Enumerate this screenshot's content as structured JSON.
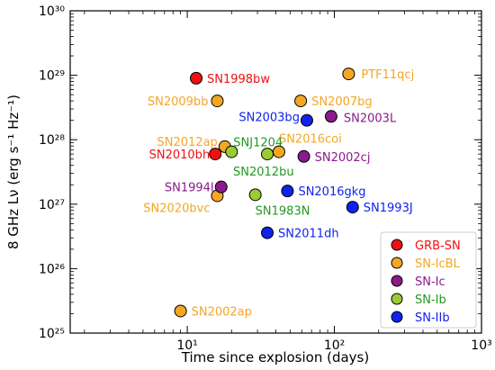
{
  "chart_data": {
    "type": "scatter",
    "title": "",
    "xlabel": "Time since explosion (days)",
    "ylabel": "8 GHz Lν (erg s⁻¹ Hz⁻¹)",
    "x_scale": "log",
    "y_scale": "log",
    "xlim": [
      1.6,
      1000
    ],
    "ylim": [
      1e+25,
      1e+30
    ],
    "x_ticks": [
      {
        "value": 10,
        "label": "10¹"
      },
      {
        "value": 100,
        "label": "10²"
      },
      {
        "value": 1000,
        "label": "10³"
      }
    ],
    "y_ticks": [
      {
        "value": 1e+25,
        "label": "10²⁵"
      },
      {
        "value": 1e+26,
        "label": "10²⁶"
      },
      {
        "value": 1e+27,
        "label": "10²⁷"
      },
      {
        "value": 1e+28,
        "label": "10²⁸"
      },
      {
        "value": 1e+29,
        "label": "10²⁹"
      },
      {
        "value": 1e+30,
        "label": "10³⁰"
      }
    ],
    "grid": false,
    "legend_position": "bottom-right",
    "series": [
      {
        "name": "GRB-SN",
        "color": "#ee1111",
        "label_color": "#ee1111",
        "points": [
          {
            "label": "SN1998bw",
            "x": 11.5,
            "y": 9e+28
          },
          {
            "label": "SN2010bh",
            "x": 15.5,
            "y": 6e+27
          }
        ]
      },
      {
        "name": "SN-IcBL",
        "color": "#f5a623",
        "label_color": "#f5a623",
        "points": [
          {
            "label": "PTF11qcj",
            "x": 125,
            "y": 1.05e+29
          },
          {
            "label": "SN2009bb",
            "x": 16,
            "y": 4e+28
          },
          {
            "label": "SN2007bg",
            "x": 59,
            "y": 4e+28
          },
          {
            "label": "SN2012ap",
            "x": 18,
            "y": 7.8e+27
          },
          {
            "label": "SN2016coi",
            "x": 42,
            "y": 6.5e+27
          },
          {
            "label": "SN2020bvc",
            "x": 16,
            "y": 1.35e+27
          },
          {
            "label": "SN2002ap",
            "x": 9,
            "y": 2.2e+25
          }
        ]
      },
      {
        "name": "SN-Ic",
        "color": "#8b1a8b",
        "label_color": "#8b1a8b",
        "points": [
          {
            "label": "SN2003L",
            "x": 95,
            "y": 2.3e+28
          },
          {
            "label": "SN2002cj",
            "x": 62,
            "y": 5.5e+27
          },
          {
            "label": "SN1994I",
            "x": 17,
            "y": 1.85e+27
          }
        ]
      },
      {
        "name": "SN-Ib",
        "color": "#99cc33",
        "label_color": "#229922",
        "points": [
          {
            "label": "SNJ1204",
            "x": 20,
            "y": 6.5e+27
          },
          {
            "label": "SN2012bu",
            "x": 35,
            "y": 6e+27
          },
          {
            "label": "SN1983N",
            "x": 29,
            "y": 1.4e+27
          }
        ]
      },
      {
        "name": "SN-IIb",
        "color": "#1122ee",
        "label_color": "#1122ee",
        "points": [
          {
            "label": "SN2003bg",
            "x": 65,
            "y": 2e+28
          },
          {
            "label": "SN2016gkg",
            "x": 48,
            "y": 1.6e+27
          },
          {
            "label": "SN1993J",
            "x": 133,
            "y": 9e+26
          },
          {
            "label": "SN2011dh",
            "x": 35,
            "y": 3.6e+26
          }
        ]
      }
    ]
  }
}
